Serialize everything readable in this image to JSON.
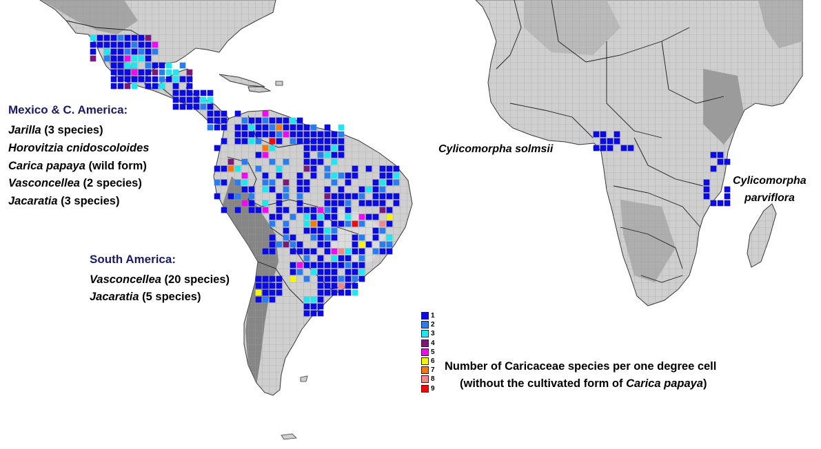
{
  "regions": {
    "mexico_ca": {
      "heading": "Mexico & C. America:",
      "lines": [
        {
          "taxon": "Jarilla",
          "note": " (3 species)"
        },
        {
          "taxon": "Horovitzia cnidoscoloides",
          "note": ""
        },
        {
          "taxon": "Carica papaya",
          "note": " (wild form)"
        },
        {
          "taxon": "Vasconcellea",
          "note": " (2 species)"
        },
        {
          "taxon": "Jacaratia",
          "note": " (3 species)"
        }
      ]
    },
    "south_america": {
      "heading": "South America:",
      "lines": [
        {
          "taxon": "Vasconcellea",
          "note": " (20 species)"
        },
        {
          "taxon": "Jacaratia",
          "note": " (5 species)"
        }
      ]
    }
  },
  "africa_labels": {
    "solmsii": "Cylicomorpha solmsii",
    "parviflora_1": "Cylicomorpha",
    "parviflora_2": "parviflora"
  },
  "legend": {
    "items": [
      {
        "value": "1",
        "color": "#0a0ae6"
      },
      {
        "value": "2",
        "color": "#2a7cf2"
      },
      {
        "value": "3",
        "color": "#1fe6f0"
      },
      {
        "value": "4",
        "color": "#7a1a78"
      },
      {
        "value": "5",
        "color": "#f00af0"
      },
      {
        "value": "6",
        "color": "#f5f50a"
      },
      {
        "value": "7",
        "color": "#f57a0a"
      },
      {
        "value": "8",
        "color": "#f08a8a"
      },
      {
        "value": "9",
        "color": "#f00a0a"
      }
    ],
    "caption_line1": "Number of Caricaceae species per one degree cell",
    "caption_pre": "(without the cultivated form of ",
    "caption_taxon": "Carica papaya",
    "caption_post": ")"
  },
  "colors": {
    "land": "#cfcfcf",
    "relief": "#9a9a9a",
    "relief_dark": "#6e6e6e",
    "grid": "#9c9c9c",
    "border": "#1a1a1a",
    "heading": "#1a1a66"
  },
  "cells": {
    "mexico_ca": {
      "count_1": 70,
      "count_2": 12,
      "count_3": 14,
      "count_4": 5,
      "count_5": 3
    },
    "south_america": {
      "count_1": 210,
      "count_2": 55,
      "count_3": 30,
      "count_4": 6,
      "count_5": 10,
      "count_6": 4,
      "count_7": 4,
      "count_8": 3,
      "count_9": 2
    },
    "africa_west": {
      "count_1": 11
    },
    "africa_east": {
      "count_1": 13
    }
  }
}
